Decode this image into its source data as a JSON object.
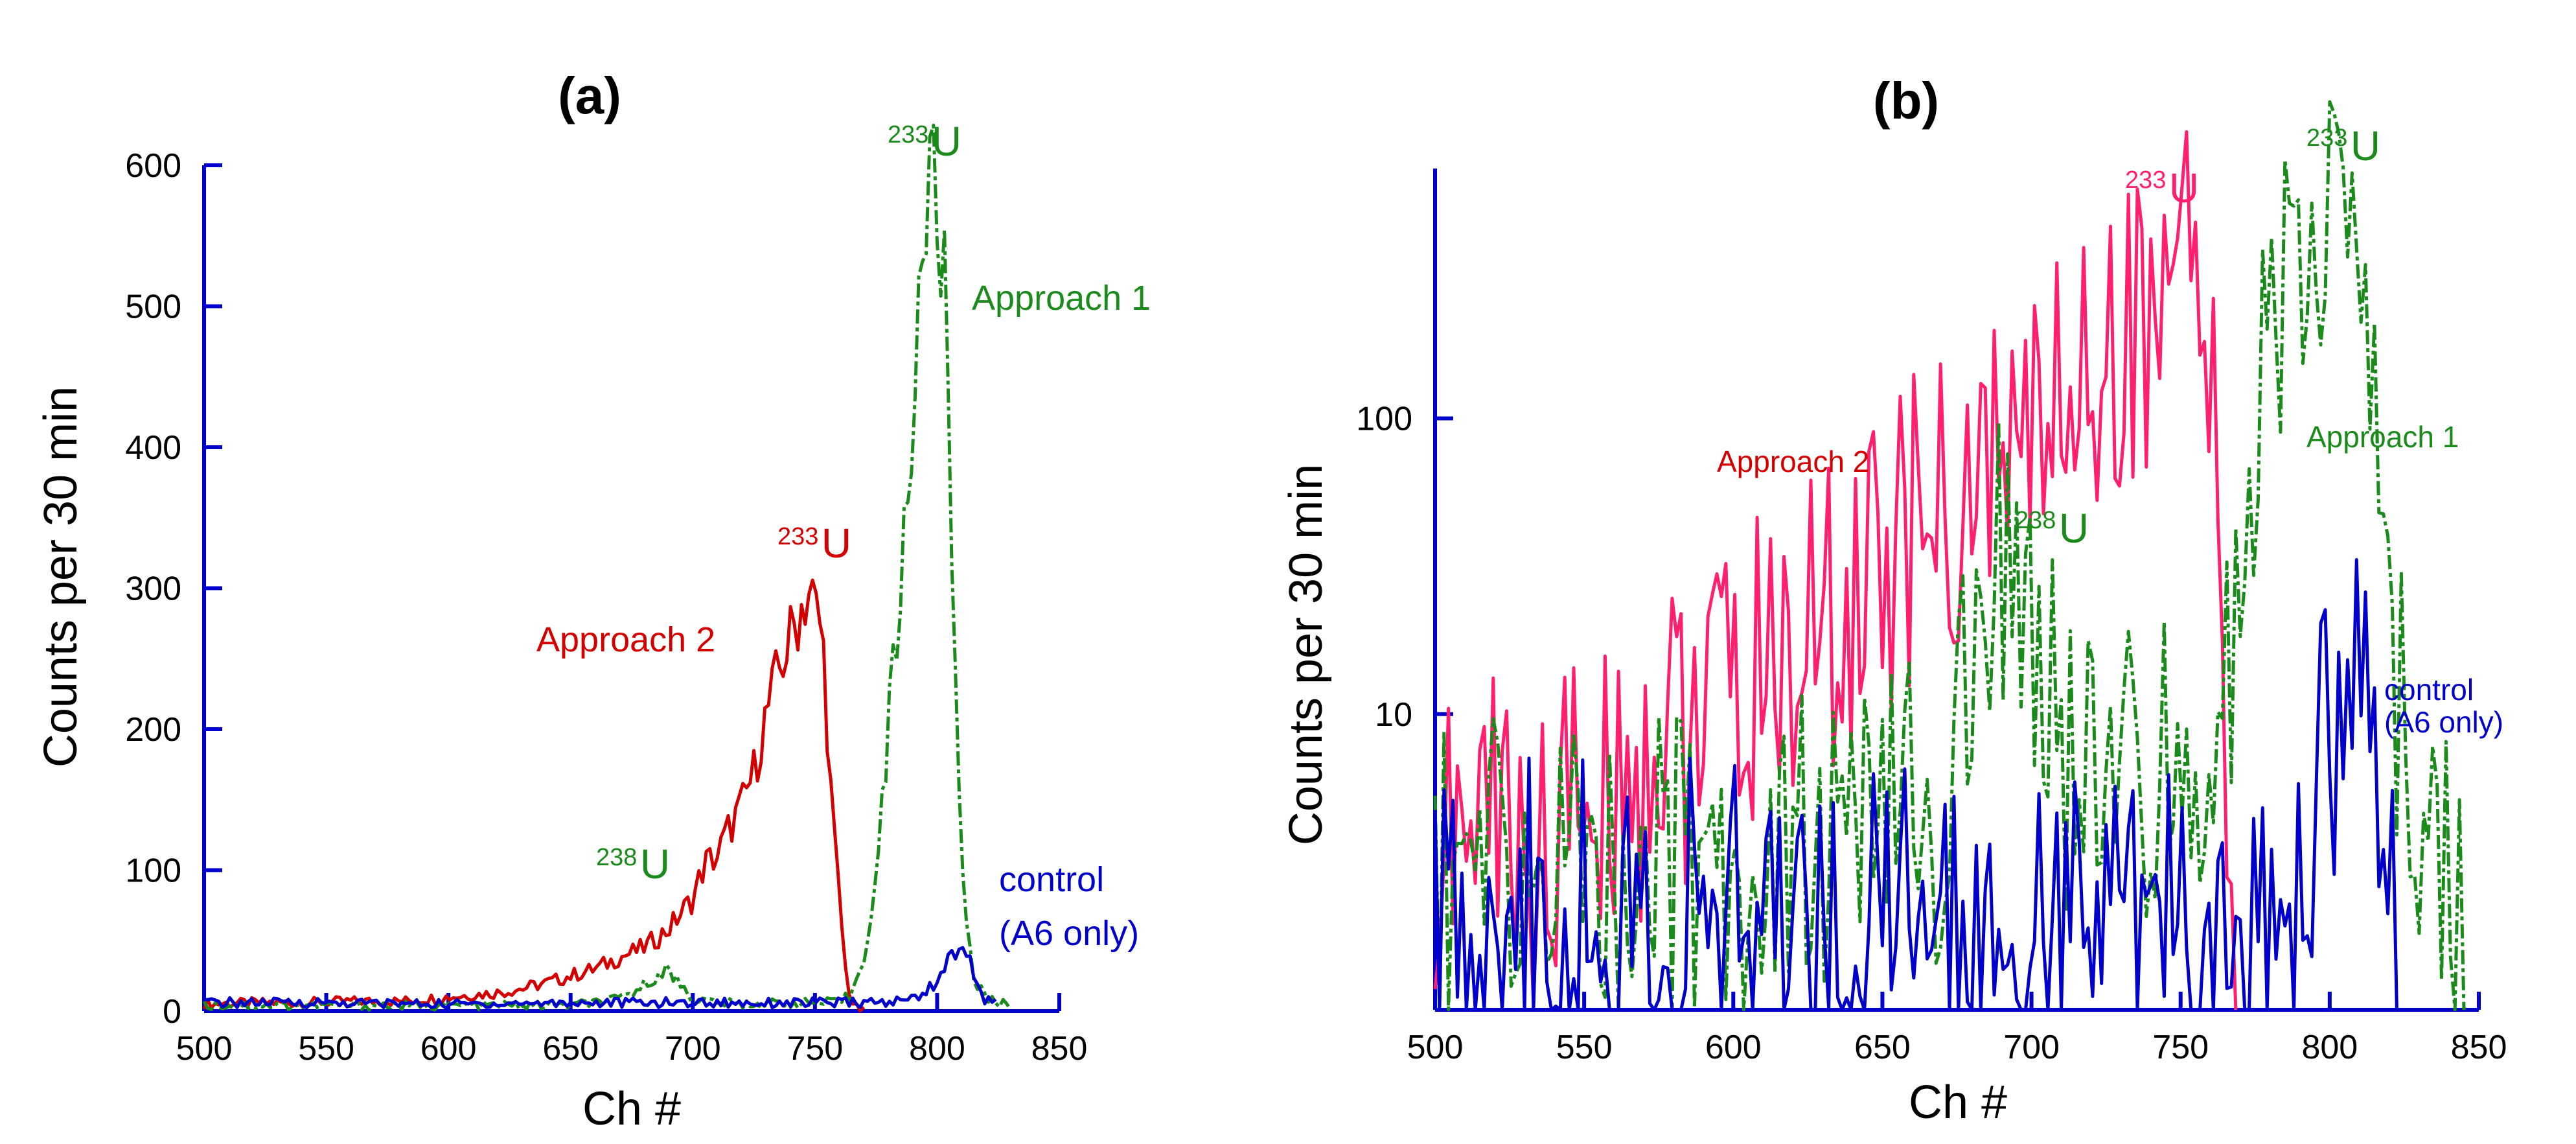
{
  "figure": {
    "colors": {
      "approach2_a": "#d40000",
      "approach2_b": "#ff1f6e",
      "approach1": "#1a8a1a",
      "control": "#0000cc",
      "axis": "#0000cc"
    }
  },
  "chart_data": [
    {
      "panel": "(a)",
      "type": "line",
      "xlabel": "Ch #",
      "ylabel": "Counts per 30 min",
      "xlim": [
        500,
        850
      ],
      "ylim": [
        0,
        600
      ],
      "yscale": "linear",
      "xticks": [
        "500",
        "550",
        "600",
        "650",
        "700",
        "750",
        "800",
        "850"
      ],
      "yticks": [
        "0",
        "100",
        "200",
        "300",
        "400",
        "500",
        "600"
      ],
      "annotations": {
        "u233_approach2": {
          "sup": "233",
          "main": "U"
        },
        "u233_approach1": {
          "sup": "233",
          "main": "U"
        },
        "u238": {
          "sup": "238",
          "main": "U"
        },
        "approach1_label": "Approach 1",
        "approach2_label": "Approach 2",
        "control_line1": "control",
        "control_line2": "(A6 only)"
      },
      "series": [
        {
          "name": "Approach 2",
          "color": "#d40000",
          "style": "solid",
          "x": [
            500,
            520,
            540,
            560,
            580,
            600,
            620,
            630,
            640,
            650,
            660,
            670,
            680,
            690,
            700,
            705,
            710,
            715,
            720,
            725,
            730,
            735,
            740,
            745,
            748,
            750,
            753,
            755,
            757,
            760,
            763,
            766,
            770
          ],
          "y": [
            5,
            6,
            6,
            7,
            7,
            10,
            13,
            16,
            20,
            25,
            30,
            38,
            45,
            58,
            80,
            105,
            110,
            130,
            145,
            170,
            210,
            240,
            265,
            290,
            300,
            285,
            270,
            205,
            140,
            80,
            20,
            3,
            0
          ]
        },
        {
          "name": "Approach 1",
          "color": "#1a8a1a",
          "style": "dashed",
          "x": [
            500,
            600,
            650,
            670,
            680,
            688,
            695,
            700,
            720,
            760,
            765,
            770,
            775,
            780,
            785,
            790,
            793,
            796,
            799,
            801,
            804,
            806,
            808,
            811,
            815,
            820,
            830
          ],
          "y": [
            4,
            4,
            4,
            8,
            18,
            30,
            20,
            8,
            5,
            6,
            12,
            40,
            90,
            200,
            300,
            420,
            520,
            570,
            590,
            560,
            480,
            330,
            200,
            80,
            25,
            8,
            4
          ]
        },
        {
          "name": "control (A6 only)",
          "color": "#0000cc",
          "style": "solid",
          "x": [
            500,
            550,
            600,
            650,
            700,
            750,
            780,
            790,
            795,
            800,
            805,
            809,
            811,
            814,
            818,
            825
          ],
          "y": [
            6,
            6,
            5,
            6,
            6,
            6,
            6,
            9,
            14,
            22,
            36,
            48,
            48,
            32,
            10,
            5
          ]
        }
      ]
    },
    {
      "panel": "(b)",
      "type": "line",
      "xlabel": "Ch #",
      "ylabel": "Counts per 30 min",
      "xlim": [
        500,
        850
      ],
      "ylim": [
        1,
        700
      ],
      "yscale": "log",
      "xticks": [
        "500",
        "550",
        "600",
        "650",
        "700",
        "750",
        "800",
        "850"
      ],
      "yticks": [
        "10",
        "100"
      ],
      "annotations": {
        "u233_approach2": {
          "sup": "233",
          "main": "U"
        },
        "u233_approach1": {
          "sup": "233",
          "main": "U"
        },
        "u238": {
          "sup": "238",
          "main": "U"
        },
        "approach1_label": "Approach 1",
        "approach2_label": "Approach 2",
        "control_line1": "control",
        "control_line2": "(A6 only)"
      },
      "series": [
        {
          "name": "Approach 2",
          "color": "#ff1f6e",
          "style": "solid",
          "x": [
            500,
            510,
            520,
            530,
            540,
            550,
            560,
            570,
            580,
            590,
            600,
            610,
            620,
            630,
            640,
            650,
            660,
            670,
            680,
            690,
            700,
            710,
            720,
            730,
            740,
            745,
            750,
            753,
            757,
            760,
            763,
            766,
            769
          ],
          "y": [
            3,
            4,
            5,
            3,
            4,
            5,
            6,
            7,
            9,
            10,
            11,
            14,
            16,
            20,
            24,
            30,
            40,
            45,
            55,
            65,
            95,
            120,
            150,
            190,
            240,
            280,
            300,
            290,
            250,
            100,
            20,
            4,
            1
          ]
        },
        {
          "name": "Approach 1",
          "color": "#1a8a1a",
          "style": "dashed",
          "x": [
            500,
            550,
            600,
            650,
            670,
            680,
            685,
            690,
            695,
            700,
            705,
            710,
            720,
            740,
            760,
            765,
            770,
            775,
            780,
            785,
            790,
            795,
            800,
            803,
            806,
            810,
            815,
            820,
            830,
            845
          ],
          "y": [
            3,
            3,
            3,
            4,
            5,
            10,
            22,
            30,
            28,
            22,
            14,
            8,
            5,
            6,
            8,
            12,
            30,
            60,
            150,
            300,
            400,
            500,
            560,
            550,
            480,
            300,
            80,
            15,
            4,
            2
          ]
        },
        {
          "name": "control (A6 only)",
          "color": "#0000cc",
          "style": "solid",
          "x": [
            500,
            550,
            600,
            650,
            700,
            750,
            780,
            790,
            795,
            800,
            805,
            809,
            812,
            815,
            820,
            825
          ],
          "y": [
            2,
            2,
            2,
            2,
            2,
            2,
            2,
            3,
            5,
            8,
            11,
            13,
            12,
            6,
            2,
            1
          ]
        }
      ]
    }
  ]
}
